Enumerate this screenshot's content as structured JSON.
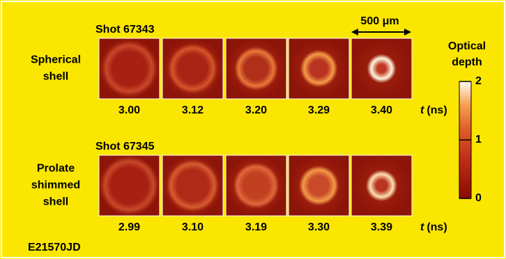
{
  "rows": [
    {
      "shot": "Shot 67343",
      "label": [
        "Spherical",
        "shell"
      ],
      "times": [
        "3.00",
        "3.12",
        "3.20",
        "3.29",
        "3.40"
      ]
    },
    {
      "shot": "Shot 67345",
      "label": [
        "Prolate",
        "shimmed",
        "shell"
      ],
      "times": [
        "2.99",
        "3.10",
        "3.19",
        "3.30",
        "3.39"
      ]
    }
  ],
  "time_axis": {
    "symbol": "t",
    "unit": "(ns)"
  },
  "scale_bar": "500 μm",
  "colorbar": {
    "title": [
      "Optical",
      "depth"
    ],
    "lim": [
      0,
      2
    ],
    "ticks": [
      0,
      1,
      2
    ]
  },
  "figure_id": "E21570JD"
}
